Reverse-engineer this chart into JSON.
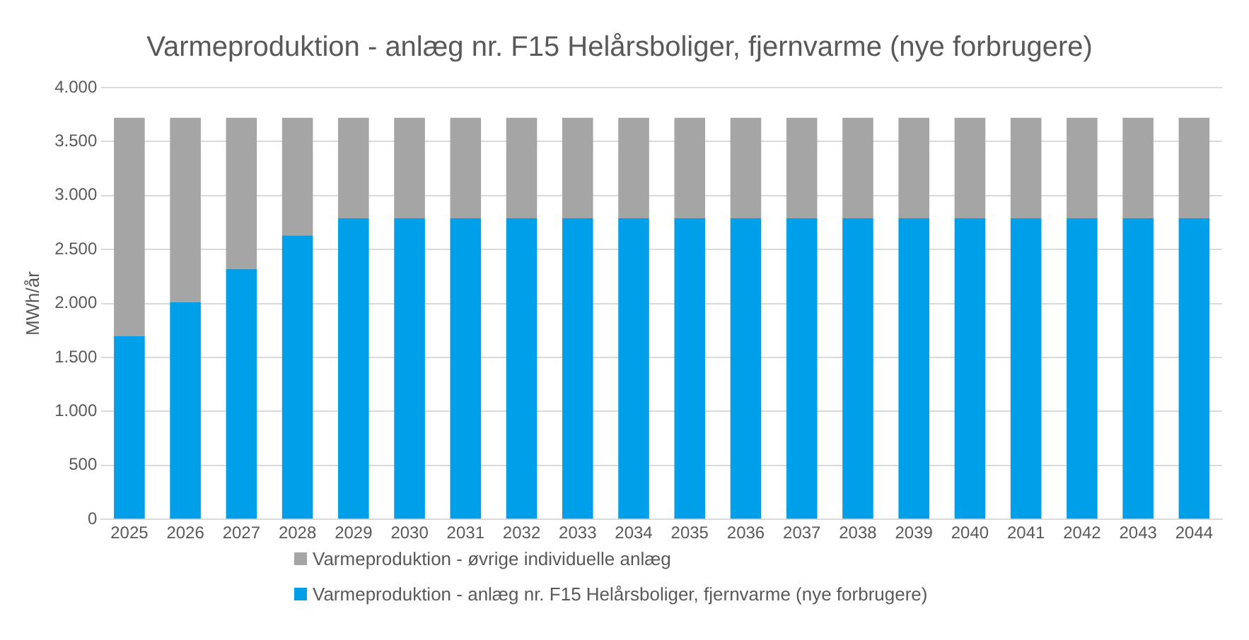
{
  "chart_data": {
    "type": "bar",
    "title": "Varmeproduktion - anlæg nr. F15 Helårsboliger, fjernvarme (nye forbrugere)",
    "ylabel": "MWh/år",
    "categories": [
      "2025",
      "2026",
      "2027",
      "2028",
      "2029",
      "2030",
      "2031",
      "2032",
      "2033",
      "2034",
      "2035",
      "2036",
      "2037",
      "2038",
      "2039",
      "2040",
      "2041",
      "2042",
      "2043",
      "2044"
    ],
    "stacked": true,
    "series": [
      {
        "name": "Varmeproduktion - anlæg nr. F15 Helårsboliger, fjernvarme (nye forbrugere)",
        "color": "#009fe9",
        "values": [
          1700,
          2010,
          2320,
          2630,
          2790,
          2790,
          2790,
          2790,
          2790,
          2790,
          2790,
          2790,
          2790,
          2790,
          2790,
          2790,
          2790,
          2790,
          2790,
          2790
        ]
      },
      {
        "name": "Varmeproduktion - øvrige individuelle anlæg",
        "color": "#a5a5a5",
        "values": [
          2020,
          1710,
          1400,
          1090,
          930,
          930,
          930,
          930,
          930,
          930,
          930,
          930,
          930,
          930,
          930,
          930,
          930,
          930,
          930,
          930
        ]
      }
    ],
    "ylim": [
      0,
      4000
    ],
    "yticks": [
      {
        "value": 0,
        "label": "0"
      },
      {
        "value": 500,
        "label": "500"
      },
      {
        "value": 1000,
        "label": "1.000"
      },
      {
        "value": 1500,
        "label": "1.500"
      },
      {
        "value": 2000,
        "label": "2.000"
      },
      {
        "value": 2500,
        "label": "2.500"
      },
      {
        "value": 3000,
        "label": "3.000"
      },
      {
        "value": 3500,
        "label": "3.500"
      },
      {
        "value": 4000,
        "label": "4.000"
      }
    ],
    "grid": "y",
    "legend": "bottom"
  }
}
